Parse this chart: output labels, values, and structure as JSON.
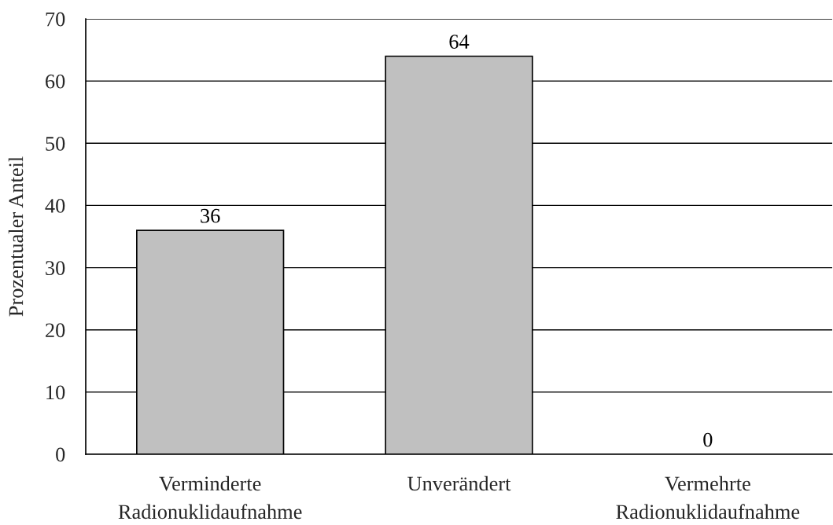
{
  "chart_data": {
    "type": "bar",
    "ylabel": "Prozentualer Anteil",
    "categories": [
      "Verminderte\nRadionuklidaufnahme",
      "Unverändert",
      "Vermehrte\nRadionuklidaufnahme"
    ],
    "values": [
      36,
      64,
      0
    ],
    "color": "#c0c0c0",
    "ylim": [
      0,
      70
    ],
    "yticks": [
      0,
      10,
      20,
      30,
      40,
      50,
      60,
      70
    ],
    "grid": "y",
    "data_labels": true
  }
}
